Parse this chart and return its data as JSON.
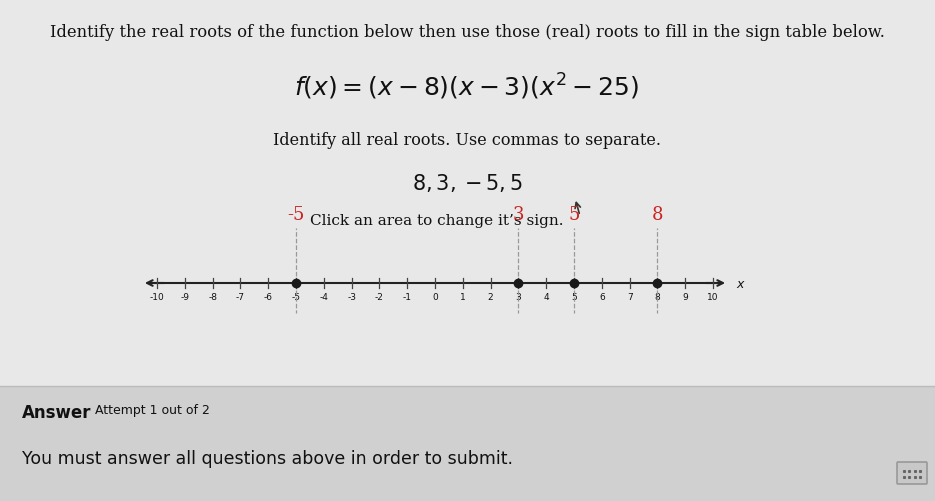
{
  "title_text": "Identify the real roots of the function below then use those (real) roots to fill in the sign table below.",
  "identify_label": "Identify all real roots. Use commas to separate.",
  "roots_answer": "8, 3, −5, 5",
  "click_label": "Click an area to change it’s sign.",
  "answer_label": "Answer",
  "attempt_label": "Attempt 1 out of 2",
  "submit_label": "You must answer all questions above in order to submit.",
  "roots": [
    -5,
    3,
    5,
    8
  ],
  "root_labels": {
    "-5": "-5",
    "3": "3",
    "5": "5",
    "8": "8"
  },
  "number_line_min": -10,
  "number_line_max": 10,
  "page_bg": "#e8e8e8",
  "content_bg": "#e8e8e8",
  "bottom_bg": "#d0d0d0",
  "dot_color": "#1a1a1a",
  "line_color": "#222222",
  "tick_color": "#444444",
  "text_color": "#111111",
  "root_label_color": "#cc2222",
  "dashed_color": "#999999",
  "cursor_color": "#333333",
  "keyboard_bg": "#c8c8c8",
  "keyboard_border": "#999999"
}
